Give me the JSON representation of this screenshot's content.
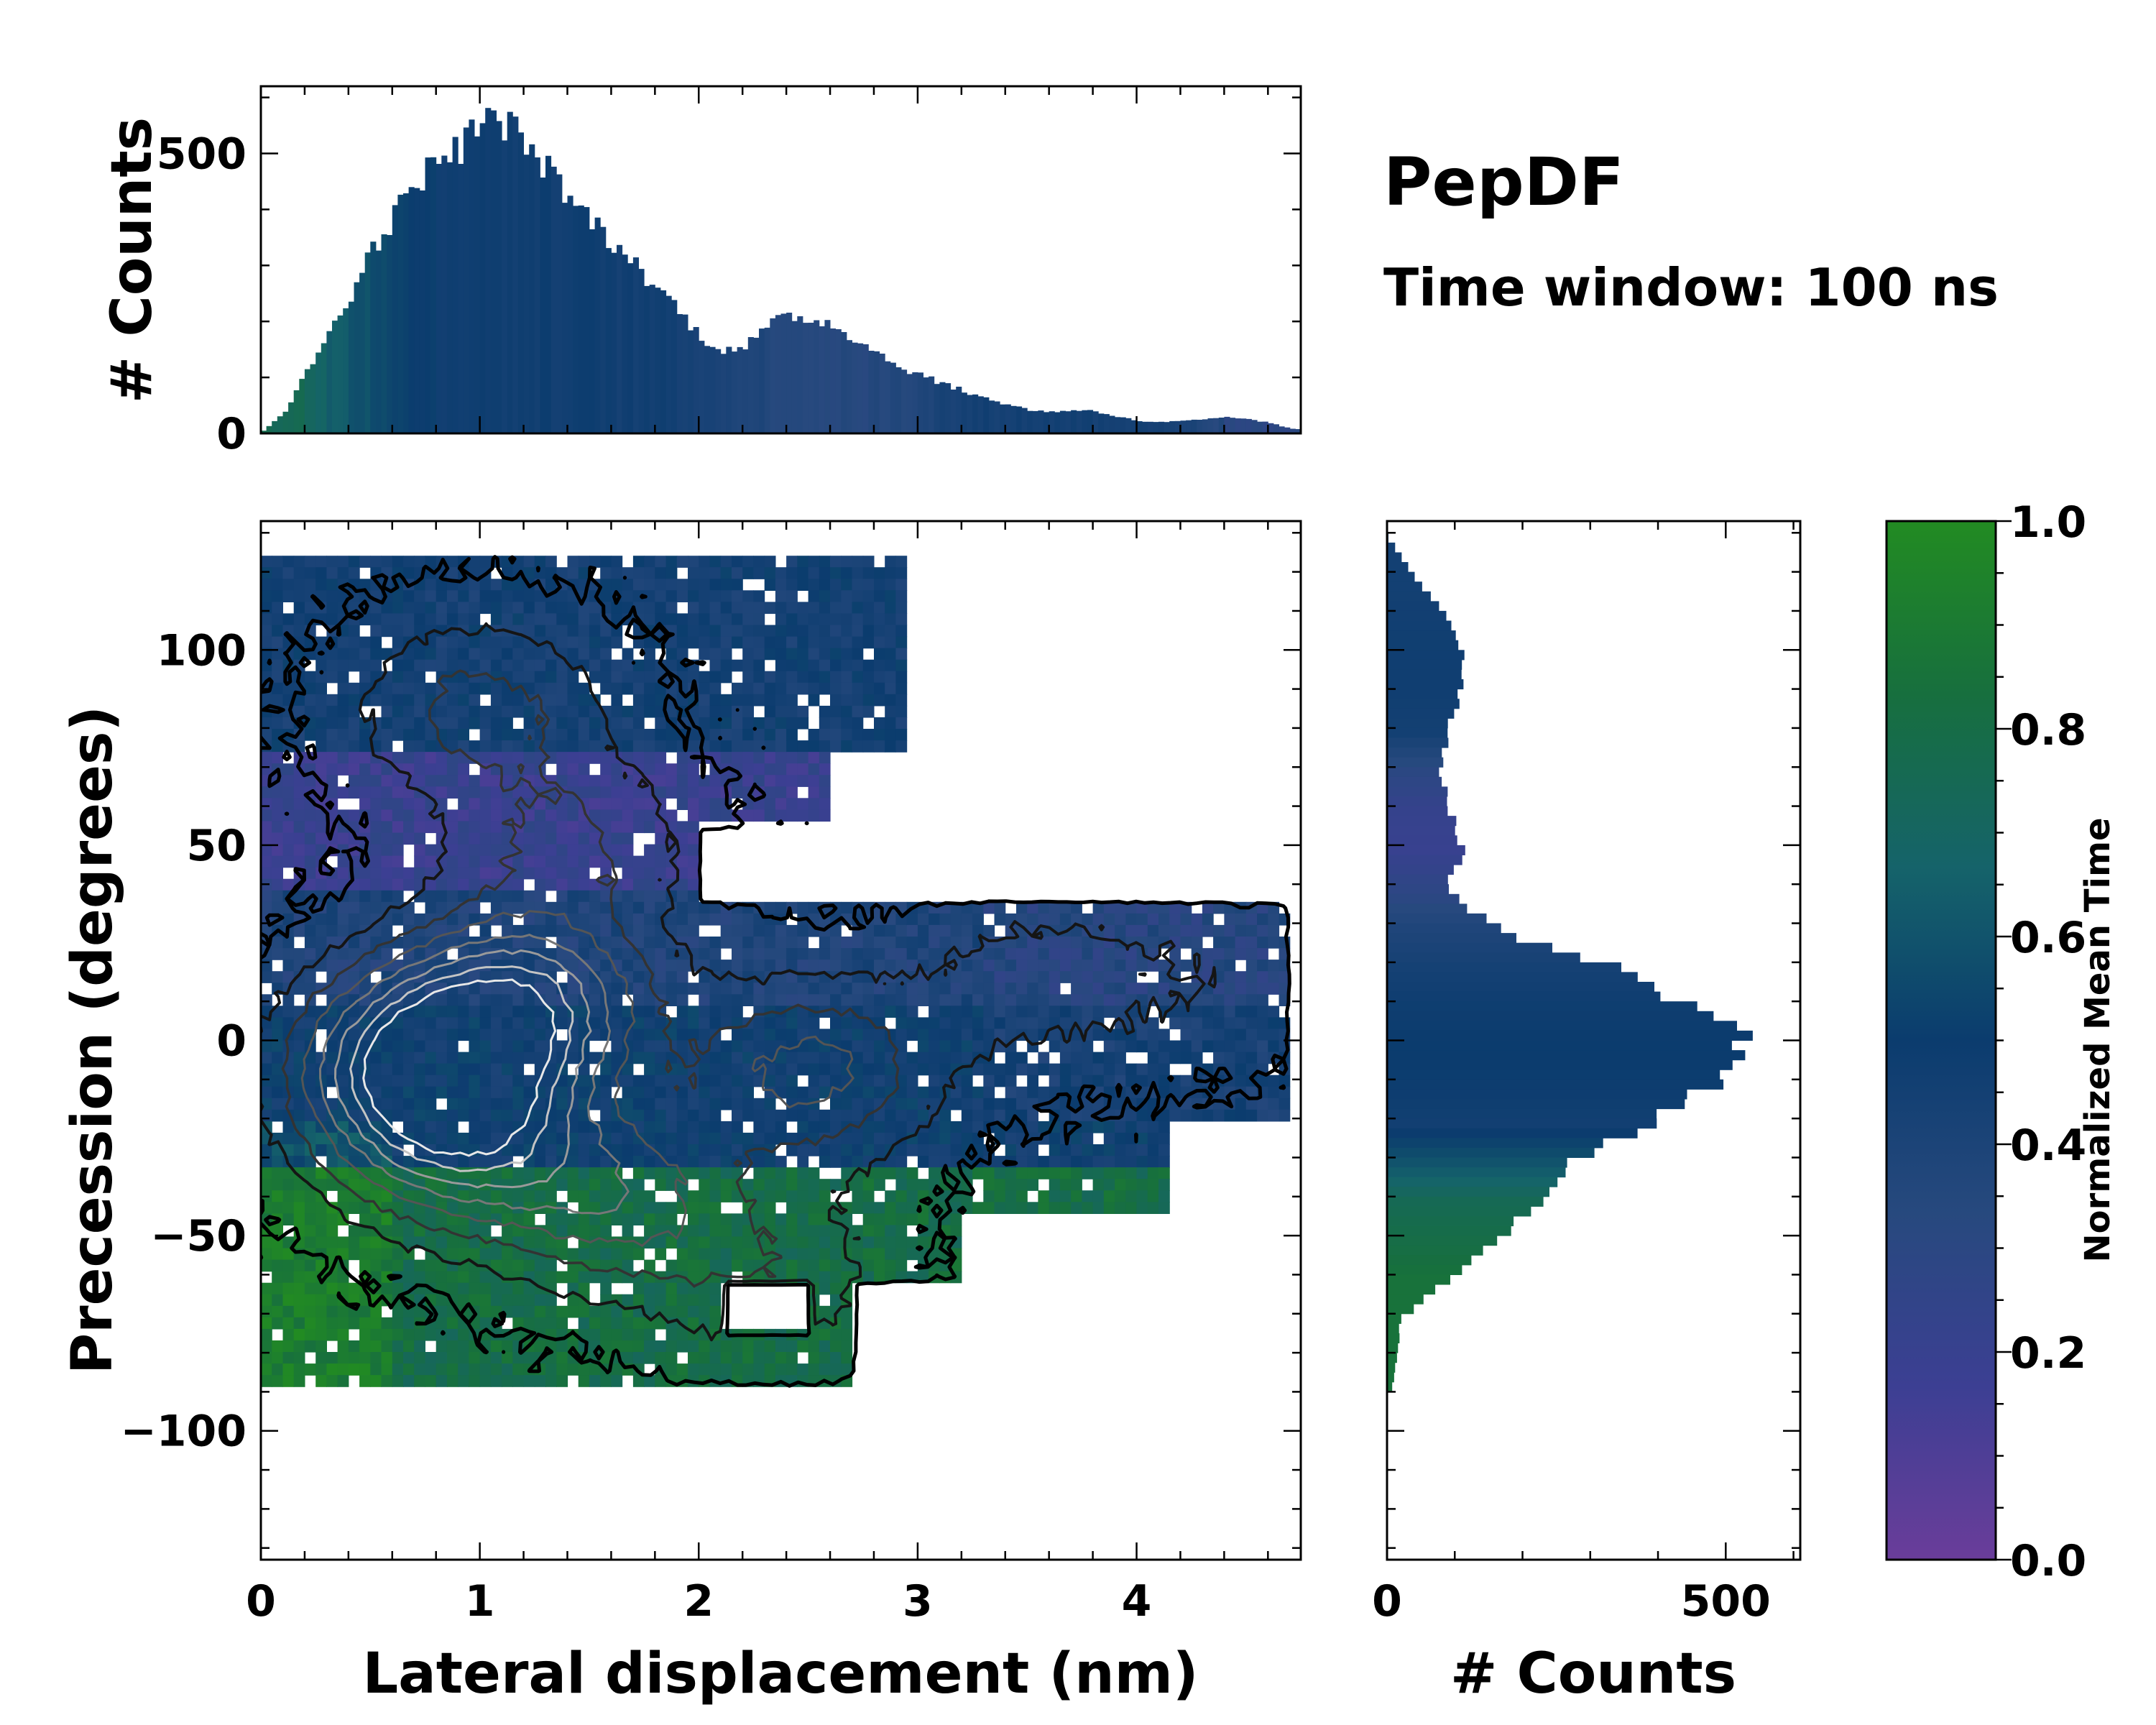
{
  "title": "PepDF",
  "subtitle": "Time window: 100 ns",
  "colors": {
    "purple": "#6a3d9a",
    "navy": "#0b3c6e",
    "green": "#228b22",
    "frame": "#000000"
  },
  "chart_data": [
    {
      "type": "heatmap",
      "name": "main-2d-histogram",
      "xlabel": "Lateral displacement (nm)",
      "ylabel": "Precession (degrees)",
      "xlim": [
        0,
        4.75
      ],
      "ylim": [
        -133,
        133
      ],
      "x_ticks": [
        0,
        1,
        2,
        3,
        4
      ],
      "x_tick_labels": [
        "0",
        "1",
        "2",
        "3",
        "4"
      ],
      "y_ticks": [
        -100,
        -50,
        0,
        50,
        100
      ],
      "y_tick_labels": [
        "−100",
        "−50",
        "0",
        "50",
        "100"
      ],
      "color_value": "Normalized Mean Time",
      "density_peaks": [
        {
          "x": 0.75,
          "y": -5,
          "weight": 1.0
        },
        {
          "x": 1.2,
          "y": 10,
          "weight": 0.8
        },
        {
          "x": 0.9,
          "y": -25,
          "weight": 0.7
        },
        {
          "x": 1.6,
          "y": -40,
          "weight": 0.5
        },
        {
          "x": 2.5,
          "y": -8,
          "weight": 0.5
        },
        {
          "x": 1.0,
          "y": 85,
          "weight": 0.35
        },
        {
          "x": 1.4,
          "y": 50,
          "weight": 0.3
        },
        {
          "x": 2.3,
          "y": -60,
          "weight": 0.25
        },
        {
          "x": 3.5,
          "y": 15,
          "weight": 0.2
        },
        {
          "x": 4.3,
          "y": 15,
          "weight": 0.12
        }
      ],
      "time_bands": [
        {
          "y_min": 75,
          "y_max": 133,
          "time": 0.45
        },
        {
          "y_min": 38,
          "y_max": 75,
          "time": 0.2
        },
        {
          "y_min": 10,
          "y_max": 38,
          "time": 0.38
        },
        {
          "y_min": -32,
          "y_max": 10,
          "time": 0.48
        },
        {
          "y_min": -133,
          "y_max": -32,
          "time": 0.8
        }
      ]
    },
    {
      "type": "bar",
      "name": "top-marginal-histogram",
      "ylabel": "# Counts",
      "xlim": [
        0,
        4.75
      ],
      "ylim": [
        0,
        620
      ],
      "y_ticks": [
        0,
        500
      ],
      "y_tick_labels": [
        "0",
        "500"
      ],
      "x": [
        0.0,
        0.1,
        0.2,
        0.3,
        0.4,
        0.5,
        0.6,
        0.7,
        0.8,
        0.9,
        1.0,
        1.1,
        1.2,
        1.3,
        1.4,
        1.5,
        1.6,
        1.7,
        1.8,
        1.9,
        2.0,
        2.1,
        2.2,
        2.3,
        2.4,
        2.5,
        2.6,
        2.7,
        2.8,
        2.9,
        3.0,
        3.1,
        3.2,
        3.3,
        3.4,
        3.5,
        3.6,
        3.7,
        3.8,
        3.9,
        4.0,
        4.1,
        4.2,
        4.3,
        4.4,
        4.5,
        4.6,
        4.7
      ],
      "values": [
        5,
        40,
        110,
        180,
        250,
        330,
        390,
        450,
        490,
        510,
        560,
        555,
        520,
        470,
        420,
        380,
        340,
        300,
        260,
        220,
        170,
        150,
        155,
        190,
        210,
        205,
        195,
        170,
        145,
        120,
        105,
        90,
        75,
        62,
        52,
        42,
        38,
        42,
        40,
        30,
        22,
        20,
        22,
        25,
        28,
        26,
        18,
        8
      ],
      "series_time": [
        0.75,
        0.75,
        0.7,
        0.65,
        0.6,
        0.55,
        0.52,
        0.5,
        0.48,
        0.48,
        0.47,
        0.47,
        0.47,
        0.47,
        0.47,
        0.47,
        0.46,
        0.46,
        0.45,
        0.44,
        0.42,
        0.4,
        0.38,
        0.36,
        0.35,
        0.34,
        0.34,
        0.34,
        0.35,
        0.36,
        0.4,
        0.42,
        0.44,
        0.45,
        0.45,
        0.45,
        0.45,
        0.45,
        0.45,
        0.45,
        0.45,
        0.42,
        0.4,
        0.35,
        0.3,
        0.3,
        0.3,
        0.3
      ]
    },
    {
      "type": "bar",
      "orientation": "horizontal",
      "name": "right-marginal-histogram",
      "xlabel": "# Counts",
      "xlim": [
        0,
        610
      ],
      "ylim": [
        -133,
        133
      ],
      "x_ticks": [
        0,
        500
      ],
      "x_tick_labels": [
        "0",
        "500"
      ],
      "y": [
        130,
        120,
        110,
        100,
        90,
        80,
        70,
        60,
        50,
        40,
        30,
        20,
        10,
        0,
        -10,
        -20,
        -30,
        -40,
        -50,
        -60,
        -70,
        -80,
        -90
      ],
      "values": [
        2,
        40,
        90,
        115,
        110,
        90,
        80,
        95,
        110,
        90,
        160,
        330,
        460,
        540,
        480,
        380,
        280,
        220,
        170,
        90,
        20,
        15,
        5
      ],
      "series_time": [
        0.45,
        0.45,
        0.46,
        0.47,
        0.47,
        0.45,
        0.3,
        0.22,
        0.2,
        0.28,
        0.38,
        0.44,
        0.48,
        0.5,
        0.49,
        0.46,
        0.6,
        0.75,
        0.8,
        0.85,
        0.85,
        0.85,
        0.85
      ]
    }
  ],
  "colorbar": {
    "label": "Normalized Mean Time",
    "ticks": [
      0.0,
      0.2,
      0.4,
      0.6,
      0.8,
      1.0
    ],
    "tick_labels": [
      "0.0",
      "0.2",
      "0.4",
      "0.6",
      "0.8",
      "1.0"
    ],
    "stops": [
      "#6a3d9a",
      "#3c3f93",
      "#27497e",
      "#0b3c6e",
      "#15636a",
      "#176f3e",
      "#228b22"
    ]
  }
}
